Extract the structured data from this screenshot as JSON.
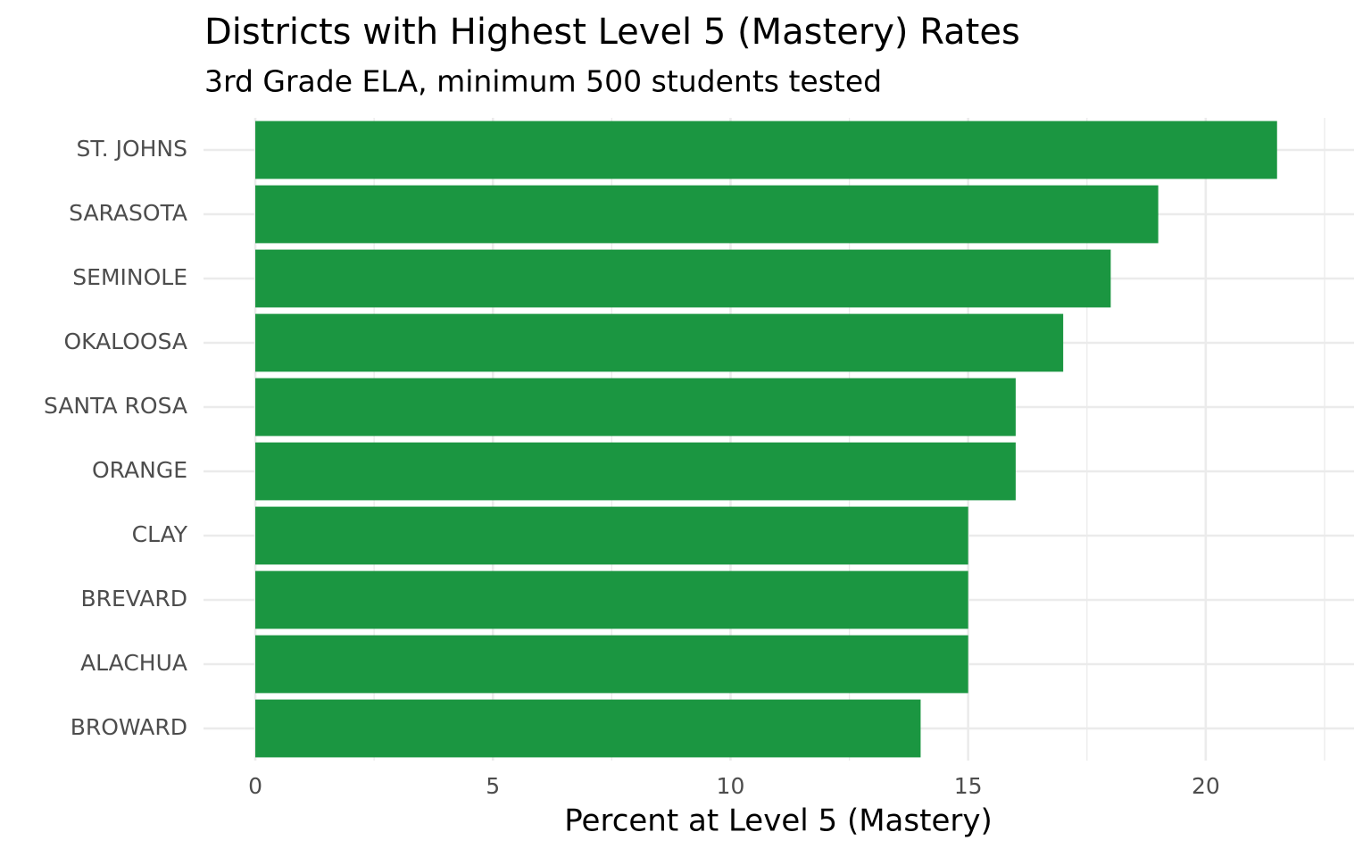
{
  "chart_data": {
    "type": "bar",
    "orientation": "horizontal",
    "title": "Districts with Highest Level 5 (Mastery) Rates",
    "subtitle": "3rd Grade ELA, minimum 500 students tested",
    "x_label": "Percent at Level 5 (Mastery)",
    "categories": [
      "ST. JOHNS",
      "SARASOTA",
      "SEMINOLE",
      "OKALOOSA",
      "SANTA ROSA",
      "ORANGE",
      "CLAY",
      "BREVARD",
      "ALACHUA",
      "BROWARD"
    ],
    "values": [
      21.5,
      19,
      18,
      17,
      16,
      16,
      15,
      15,
      15,
      14
    ],
    "color": "#1b9641",
    "xlim": [
      -1.09,
      23.12
    ],
    "xticks": [
      0,
      5,
      10,
      15,
      20
    ],
    "x_minor_grid": [
      2.5,
      7.5,
      12.5,
      17.5,
      22.5
    ],
    "grid": true
  }
}
